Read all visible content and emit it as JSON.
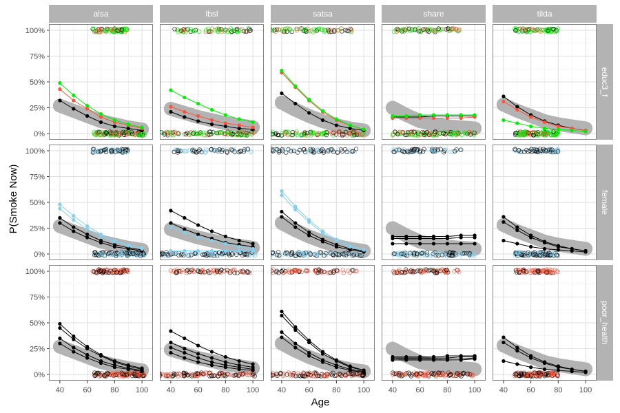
{
  "chart_data": {
    "type": "scatter",
    "xlabel": "Age",
    "ylabel": "P(Smoke Now)",
    "xlim": [
      32,
      108
    ],
    "ylim": [
      -0.06,
      1.06
    ],
    "x_ticks": [
      40,
      60,
      80,
      100
    ],
    "y_ticks": [
      {
        "value": 0,
        "label": "0%"
      },
      {
        "value": 0.25,
        "label": "25%"
      },
      {
        "value": 0.5,
        "label": "50%"
      },
      {
        "value": 0.75,
        "label": "75%"
      },
      {
        "value": 1,
        "label": "100%"
      }
    ],
    "grid": true,
    "columns": [
      "alsa",
      "lbsl",
      "satsa",
      "share",
      "tilda"
    ],
    "rows": [
      {
        "label": "educ3_f",
        "palette": [
          "#000000",
          "#f8553a",
          "#00ee00"
        ]
      },
      {
        "label": "female",
        "palette": [
          "#000000",
          "#87ceeb"
        ]
      },
      {
        "label": "poor_health",
        "palette": [
          "#000000",
          "#f8553a"
        ]
      }
    ],
    "colors": {
      "band": "#b3b3b3",
      "strip": "#b3b3b3"
    },
    "age_grid": [
      40,
      50,
      60,
      70,
      80,
      90,
      100
    ],
    "studies": {
      "alsa": {
        "obs_range": [
          65,
          102
        ],
        "top_range": [
          64,
          90
        ],
        "band": [
          0.27,
          0.22,
          0.17,
          0.12,
          0.09,
          0.06,
          0.04
        ],
        "educ3_f": [
          [
            0.32,
            0.24,
            0.17,
            0.11,
            0.07,
            0.05,
            0.03
          ],
          [
            0.43,
            0.32,
            0.24,
            0.16,
            0.11,
            0.08,
            0.05
          ],
          [
            0.49,
            0.37,
            0.27,
            0.19,
            0.13,
            0.09,
            0.06
          ]
        ],
        "female": [
          [
            0.35,
            0.26,
            0.19,
            0.13,
            0.09,
            0.06,
            0.04
          ],
          [
            0.3,
            0.22,
            0.16,
            0.11,
            0.07,
            0.05,
            0.03
          ],
          [
            0.48,
            0.37,
            0.27,
            0.19,
            0.13,
            0.09,
            0.06
          ],
          [
            0.44,
            0.33,
            0.24,
            0.17,
            0.12,
            0.08,
            0.05
          ]
        ],
        "poor_health": [
          [
            0.49,
            0.37,
            0.27,
            0.19,
            0.13,
            0.09,
            0.06
          ],
          [
            0.45,
            0.34,
            0.25,
            0.18,
            0.12,
            0.08,
            0.05
          ],
          [
            0.35,
            0.26,
            0.19,
            0.13,
            0.09,
            0.06,
            0.04
          ],
          [
            0.3,
            0.22,
            0.16,
            0.11,
            0.07,
            0.05,
            0.03
          ]
        ]
      },
      "lbsl": {
        "obs_range": [
          30,
          102
        ],
        "top_range": [
          40,
          100
        ],
        "band": [
          0.24,
          0.2,
          0.16,
          0.13,
          0.1,
          0.08,
          0.06
        ],
        "educ3_f": [
          [
            0.21,
            0.16,
            0.12,
            0.09,
            0.07,
            0.05,
            0.04
          ],
          [
            0.26,
            0.21,
            0.17,
            0.13,
            0.1,
            0.08,
            0.06
          ],
          [
            0.42,
            0.35,
            0.29,
            0.23,
            0.18,
            0.14,
            0.11
          ]
        ],
        "female": [
          [
            0.42,
            0.35,
            0.28,
            0.22,
            0.17,
            0.13,
            0.1
          ],
          [
            0.3,
            0.24,
            0.19,
            0.15,
            0.11,
            0.09,
            0.07
          ],
          [
            0.26,
            0.21,
            0.16,
            0.13,
            0.1,
            0.07,
            0.05
          ],
          [
            0.03,
            0.03,
            0.03,
            0.03,
            0.03,
            0.03,
            0.03
          ]
        ],
        "poor_health": [
          [
            0.42,
            0.35,
            0.28,
            0.22,
            0.17,
            0.13,
            0.1
          ],
          [
            0.31,
            0.25,
            0.2,
            0.16,
            0.12,
            0.09,
            0.07
          ],
          [
            0.26,
            0.21,
            0.16,
            0.12,
            0.09,
            0.07,
            0.05
          ],
          [
            0.21,
            0.16,
            0.12,
            0.09,
            0.07,
            0.05,
            0.04
          ]
        ]
      },
      "satsa": {
        "obs_range": [
          30,
          100
        ],
        "top_range": [
          30,
          95
        ],
        "band": [
          0.3,
          0.23,
          0.17,
          0.12,
          0.08,
          0.05,
          0.03
        ],
        "educ3_f": [
          [
            0.39,
            0.29,
            0.2,
            0.13,
            0.08,
            0.05,
            0.03
          ],
          [
            0.59,
            0.45,
            0.32,
            0.21,
            0.13,
            0.08,
            0.04
          ],
          [
            0.61,
            0.46,
            0.33,
            0.22,
            0.14,
            0.08,
            0.04
          ]
        ],
        "female": [
          [
            0.41,
            0.3,
            0.21,
            0.14,
            0.09,
            0.05,
            0.03
          ],
          [
            0.36,
            0.26,
            0.18,
            0.12,
            0.07,
            0.04,
            0.02
          ],
          [
            0.61,
            0.46,
            0.33,
            0.22,
            0.14,
            0.08,
            0.04
          ],
          [
            0.57,
            0.43,
            0.31,
            0.2,
            0.13,
            0.07,
            0.04
          ]
        ],
        "poor_health": [
          [
            0.61,
            0.46,
            0.33,
            0.22,
            0.14,
            0.08,
            0.04
          ],
          [
            0.57,
            0.43,
            0.31,
            0.2,
            0.13,
            0.07,
            0.04
          ],
          [
            0.41,
            0.3,
            0.21,
            0.14,
            0.09,
            0.05,
            0.03
          ],
          [
            0.36,
            0.26,
            0.18,
            0.12,
            0.07,
            0.04,
            0.02
          ]
        ]
      },
      "share": {
        "obs_range": [
          40,
          100
        ],
        "top_range": [
          40,
          90
        ],
        "band": [
          0.25,
          0.18,
          0.12,
          0.09,
          0.07,
          0.06,
          0.05
        ],
        "educ3_f": [
          [
            0.16,
            0.16,
            0.16,
            0.17,
            0.17,
            0.17,
            0.17
          ],
          [
            0.15,
            0.15,
            0.15,
            0.15,
            0.15,
            0.15,
            0.16
          ],
          [
            0.17,
            0.17,
            0.18,
            0.18,
            0.18,
            0.18,
            0.18
          ]
        ],
        "female": [
          [
            0.17,
            0.17,
            0.17,
            0.17,
            0.17,
            0.18,
            0.18
          ],
          [
            0.15,
            0.15,
            0.15,
            0.15,
            0.15,
            0.16,
            0.16
          ],
          [
            0.1,
            0.1,
            0.1,
            0.1,
            0.1,
            0.1,
            0.1
          ]
        ],
        "poor_health": [
          [
            0.17,
            0.17,
            0.17,
            0.17,
            0.18,
            0.18,
            0.18
          ],
          [
            0.16,
            0.16,
            0.16,
            0.16,
            0.16,
            0.17,
            0.17
          ],
          [
            0.15,
            0.15,
            0.15,
            0.15,
            0.15,
            0.15,
            0.16
          ],
          [
            0.14,
            0.14,
            0.14,
            0.14,
            0.14,
            0.14,
            0.15
          ]
        ]
      },
      "tilda": {
        "obs_range": [
          48,
          80
        ],
        "top_range": [
          48,
          80
        ],
        "band": [
          0.28,
          0.22,
          0.17,
          0.12,
          0.09,
          0.07,
          0.05
        ],
        "educ3_f": [
          [
            0.36,
            0.26,
            0.18,
            0.12,
            0.08,
            0.05,
            0.03
          ],
          [
            0.31,
            0.23,
            0.16,
            0.11,
            0.07,
            0.05,
            0.03
          ],
          [
            0.13,
            0.1,
            0.07,
            0.05,
            0.04,
            0.03,
            0.02
          ]
        ],
        "female": [
          [
            0.36,
            0.26,
            0.18,
            0.12,
            0.08,
            0.05,
            0.03
          ],
          [
            0.31,
            0.23,
            0.16,
            0.11,
            0.07,
            0.05,
            0.03
          ],
          [
            0.13,
            0.1,
            0.07,
            0.05,
            0.04,
            0.03,
            0.02
          ]
        ],
        "poor_health": [
          [
            0.36,
            0.26,
            0.18,
            0.12,
            0.08,
            0.05,
            0.03
          ],
          [
            0.31,
            0.23,
            0.16,
            0.11,
            0.07,
            0.05,
            0.03
          ],
          [
            0.13,
            0.1,
            0.07,
            0.05,
            0.04,
            0.03,
            0.02
          ]
        ]
      }
    }
  }
}
